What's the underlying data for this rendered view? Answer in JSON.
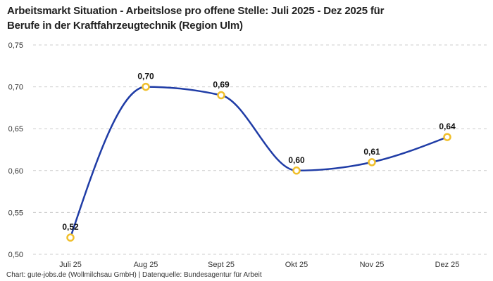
{
  "chart_data": {
    "type": "line",
    "title": "Arbeitsmarkt Situation - Arbeitslose pro offene Stelle: Juli 2025 - Dez 2025 für Berufe in der Kraftfahrzeugtechnik (Region Ulm)",
    "title_lines": [
      "Arbeitsmarkt Situation - Arbeitslose pro offene Stelle: Juli 2025 - Dez 2025 für",
      "Berufe in der Kraftfahrzeugtechnik (Region Ulm)"
    ],
    "categories": [
      "Juli 25",
      "Aug 25",
      "Sept 25",
      "Okt 25",
      "Nov 25",
      "Dez 25"
    ],
    "values": [
      0.52,
      0.7,
      0.69,
      0.6,
      0.61,
      0.64
    ],
    "point_labels": [
      "0,52",
      "0,70",
      "0,69",
      "0,60",
      "0,61",
      "0,64"
    ],
    "xlabel": "",
    "ylabel": "",
    "ylim": [
      0.5,
      0.75
    ],
    "y_ticks": [
      0.75,
      0.7,
      0.65,
      0.6,
      0.55,
      0.5
    ],
    "y_tick_labels": [
      "0,75",
      "0,70",
      "0,65",
      "0,60",
      "0,55",
      "0,50"
    ],
    "grid": "horizontal-dashed",
    "legend": "none",
    "smooth": "monotone",
    "colors": {
      "line": "#1f3ca6",
      "marker_ring": "#f0bf2b",
      "marker_fill": "#ffffff",
      "grid": "#cccccc",
      "axis_text": "#333333",
      "point_label": "#111111"
    }
  },
  "footer": {
    "text": "Chart: gute-jobs.de (Wollmilchsau GmbH) | Datenquelle: Bundesagentur für Arbeit"
  }
}
